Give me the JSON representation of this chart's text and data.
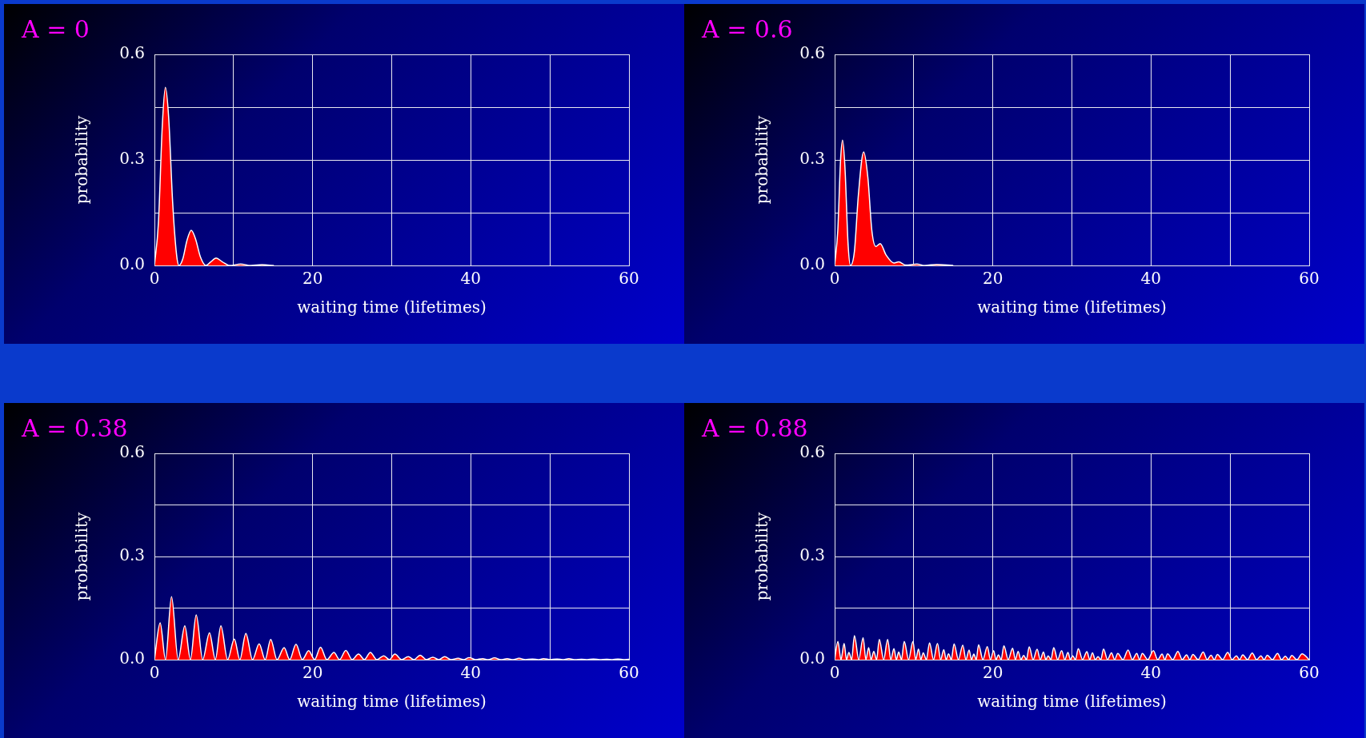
{
  "chart_data": [
    {
      "type": "area",
      "title": "A = 0",
      "xlabel": "waiting time (lifetimes)",
      "ylabel": "probability",
      "color": "#ff0000",
      "grid": true,
      "xlim": [
        0,
        60
      ],
      "xticks": [
        0,
        {
          "value": 10,
          "label": null
        },
        20,
        {
          "value": 30,
          "label": null
        },
        40,
        {
          "value": 50,
          "label": null
        },
        60
      ],
      "ylim": [
        0,
        0.6
      ],
      "yticks": [
        {
          "value": 0,
          "label": "0.0"
        },
        {
          "value": 0.15,
          "label": null
        },
        {
          "value": 0.3,
          "label": "0.3"
        },
        {
          "value": 0.45,
          "label": null
        },
        {
          "value": 0.6,
          "label": "0.6"
        }
      ],
      "x": [
        0,
        0.5,
        1,
        1.38,
        1.8,
        2.3,
        2.8,
        3.1,
        3.6,
        4.1,
        4.65,
        5.2,
        5.8,
        6.5,
        7.1,
        7.8,
        8.6,
        9.5,
        10.9,
        12.2,
        13.6,
        15.1
      ],
      "values": [
        0,
        0.12,
        0.4,
        0.506,
        0.42,
        0.18,
        0.03,
        0,
        0.02,
        0.07,
        0.1,
        0.075,
        0.025,
        0,
        0.01,
        0.021,
        0.01,
        0,
        0.004,
        0,
        0.002,
        0
      ]
    },
    {
      "type": "area",
      "title": "A = 0.6",
      "xlabel": "waiting time (lifetimes)",
      "ylabel": "probability",
      "color": "#ff0000",
      "grid": true,
      "xlim": [
        0,
        60
      ],
      "xticks": [
        0,
        {
          "value": 10,
          "label": null
        },
        20,
        {
          "value": 30,
          "label": null
        },
        40,
        {
          "value": 50,
          "label": null
        },
        60
      ],
      "ylim": [
        0,
        0.6
      ],
      "yticks": [
        {
          "value": 0,
          "label": "0.0"
        },
        {
          "value": 0.15,
          "label": null
        },
        {
          "value": 0.3,
          "label": "0.3"
        },
        {
          "value": 0.45,
          "label": null
        },
        {
          "value": 0.6,
          "label": "0.6"
        }
      ],
      "x": [
        0,
        0.4,
        0.75,
        1.0,
        1.3,
        1.7,
        2.0,
        2.5,
        3.0,
        3.67,
        4.2,
        4.7,
        5.2,
        5.76,
        6.5,
        7.5,
        8.1,
        9.0,
        10.4,
        11.4,
        12.9,
        15
      ],
      "values": [
        0,
        0.1,
        0.3,
        0.356,
        0.28,
        0.06,
        0,
        0.04,
        0.2,
        0.323,
        0.25,
        0.1,
        0.054,
        0.062,
        0.03,
        0.007,
        0.01,
        0.001,
        0.004,
        0,
        0.003,
        0
      ]
    },
    {
      "type": "area",
      "title": "A = 0.38",
      "xlabel": "waiting time (lifetimes)",
      "ylabel": "probability",
      "color": "#ff0000",
      "grid": true,
      "xlim": [
        0,
        60
      ],
      "xticks": [
        0,
        {
          "value": 10,
          "label": null
        },
        20,
        {
          "value": 30,
          "label": null
        },
        40,
        {
          "value": 50,
          "label": null
        },
        60
      ],
      "ylim": [
        0,
        0.6
      ],
      "yticks": [
        {
          "value": 0,
          "label": "0.0"
        },
        {
          "value": 0.15,
          "label": null
        },
        {
          "value": 0.3,
          "label": "0.3"
        },
        {
          "value": 0.45,
          "label": null
        },
        {
          "value": 0.6,
          "label": "0.6"
        }
      ],
      "x": [
        0,
        0.72,
        1.4,
        2.16,
        3.0,
        3.84,
        4.55,
        5.28,
        6.1,
        6.96,
        7.7,
        8.4,
        9.25,
        10.1,
        10.8,
        11.56,
        12.4,
        13.24,
        14.0,
        14.7,
        15.5,
        16.4,
        17.1,
        17.9,
        18.7,
        19.5,
        20.25,
        21.0,
        21.8,
        22.7,
        23.4,
        24.2,
        25.0,
        25.8,
        26.55,
        27.3,
        28.1,
        29.0,
        29.7,
        30.4,
        31.25,
        32.1,
        32.8,
        33.6,
        34.4,
        35.2,
        35.95,
        36.7,
        37.5,
        38.4,
        39.1,
        39.8,
        40.65,
        41.5,
        42.2,
        43.0,
        43.8,
        44.6,
        45.35,
        46.1,
        46.9,
        47.8,
        48.5,
        49.2,
        50.05,
        50.9,
        51.6,
        52.4,
        53.2,
        54.0,
        54.75,
        55.5,
        56.3,
        57.2,
        57.9,
        58.6,
        59.3,
        60
      ],
      "values": [
        0,
        0.107,
        0,
        0.183,
        0,
        0.098,
        0,
        0.13,
        0,
        0.078,
        0,
        0.098,
        0,
        0.06,
        0,
        0.076,
        0,
        0.046,
        0,
        0.059,
        0,
        0.035,
        0,
        0.045,
        0,
        0.026,
        0,
        0.036,
        0,
        0.021,
        0,
        0.027,
        0,
        0.016,
        0,
        0.021,
        0,
        0.011,
        0,
        0.016,
        0,
        0.009,
        0,
        0.013,
        0,
        0.007,
        0,
        0.009,
        0,
        0.004,
        0,
        0.006,
        0,
        0.003,
        0,
        0.005,
        0,
        0.003,
        0,
        0.004,
        0,
        0.002,
        0,
        0.003,
        0,
        0.002,
        0,
        0.003,
        0,
        0.001,
        0,
        0.002,
        0,
        0.001,
        0,
        0.002,
        0,
        0.001
      ]
    },
    {
      "type": "area",
      "title": "A = 0.88",
      "xlabel": "waiting time (lifetimes)",
      "ylabel": "probability",
      "color": "#ff0000",
      "grid": true,
      "xlim": [
        0,
        60
      ],
      "xticks": [
        0,
        {
          "value": 10,
          "label": null
        },
        20,
        {
          "value": 30,
          "label": null
        },
        40,
        {
          "value": 50,
          "label": null
        },
        60
      ],
      "ylim": [
        0,
        0.6
      ],
      "yticks": [
        {
          "value": 0,
          "label": "0.0"
        },
        {
          "value": 0.15,
          "label": null
        },
        {
          "value": 0.3,
          "label": "0.3"
        },
        {
          "value": 0.45,
          "label": null
        },
        {
          "value": 0.6,
          "label": "0.6"
        }
      ],
      "x": [
        0,
        0.41,
        0.8,
        1.2,
        1.5,
        1.8,
        2.15,
        2.5,
        3.05,
        3.6,
        3.95,
        4.3,
        4.6,
        4.95,
        5.3,
        5.65,
        6.2,
        6.7,
        7.1,
        7.5,
        7.8,
        8.1,
        8.45,
        8.8,
        9.35,
        9.9,
        10.25,
        10.6,
        10.9,
        11.2,
        11.6,
        12.0,
        12.5,
        13.0,
        13.4,
        13.8,
        14.1,
        14.4,
        14.75,
        15.1,
        15.65,
        16.2,
        16.6,
        17.0,
        17.3,
        17.6,
        17.9,
        18.2,
        18.75,
        19.3,
        19.7,
        20.1,
        20.4,
        20.7,
        21.05,
        21.4,
        21.95,
        22.5,
        22.85,
        23.2,
        23.55,
        23.9,
        24.25,
        24.6,
        25.1,
        25.6,
        26.0,
        26.4,
        26.7,
        27.0,
        27.35,
        27.7,
        28.2,
        28.7,
        29.1,
        29.5,
        29.8,
        30.1,
        30.45,
        30.8,
        31.35,
        31.9,
        32.25,
        32.6,
        32.95,
        33.3,
        33.65,
        34.0,
        34.5,
        35.0,
        35.4,
        35.8,
        36.45,
        37.1,
        37.65,
        38.2,
        38.55,
        38.9,
        39.6,
        40.3,
        40.85,
        41.4,
        41.75,
        42.1,
        42.75,
        43.4,
        43.95,
        44.5,
        44.9,
        45.3,
        45.95,
        46.6,
        47.1,
        47.6,
        48.0,
        48.4,
        49.05,
        49.7,
        50.25,
        50.8,
        51.2,
        51.6,
        52.2,
        52.8,
        53.35,
        53.9,
        54.3,
        54.7,
        55.35,
        56.0,
        56.5,
        57.0,
        57.4,
        57.8,
        58.45,
        59.1,
        60
      ],
      "values": [
        0,
        0.053,
        0,
        0.047,
        0,
        0.021,
        0,
        0.07,
        0,
        0.064,
        0,
        0.035,
        0,
        0.024,
        0,
        0.059,
        0,
        0.059,
        0,
        0.032,
        0,
        0.022,
        0,
        0.053,
        0,
        0.053,
        0,
        0.031,
        0,
        0.02,
        0,
        0.049,
        0,
        0.047,
        0,
        0.029,
        0,
        0.017,
        0,
        0.046,
        0,
        0.042,
        0,
        0.028,
        0,
        0.016,
        0,
        0.043,
        0,
        0.038,
        0,
        0.026,
        0,
        0.014,
        0,
        0.04,
        0,
        0.033,
        0,
        0.024,
        0,
        0.012,
        0,
        0.037,
        0,
        0.03,
        0,
        0.022,
        0,
        0.011,
        0,
        0.035,
        0,
        0.026,
        0,
        0.021,
        0,
        0.011,
        0,
        0.032,
        0,
        0.023,
        0,
        0.02,
        0,
        0.009,
        0,
        0.031,
        0,
        0.02,
        0,
        0.018,
        0,
        0.028,
        0,
        0.018,
        0,
        0.018,
        0,
        0.026,
        0,
        0.016,
        0,
        0.017,
        0,
        0.024,
        0,
        0.014,
        0,
        0.015,
        0,
        0.022,
        0,
        0.013,
        0,
        0.015,
        0,
        0.021,
        0,
        0.011,
        0,
        0.014,
        0,
        0.019,
        0,
        0.011,
        0,
        0.013,
        0,
        0.018,
        0,
        0.01,
        0,
        0.012,
        0,
        0.017,
        0
      ]
    }
  ]
}
